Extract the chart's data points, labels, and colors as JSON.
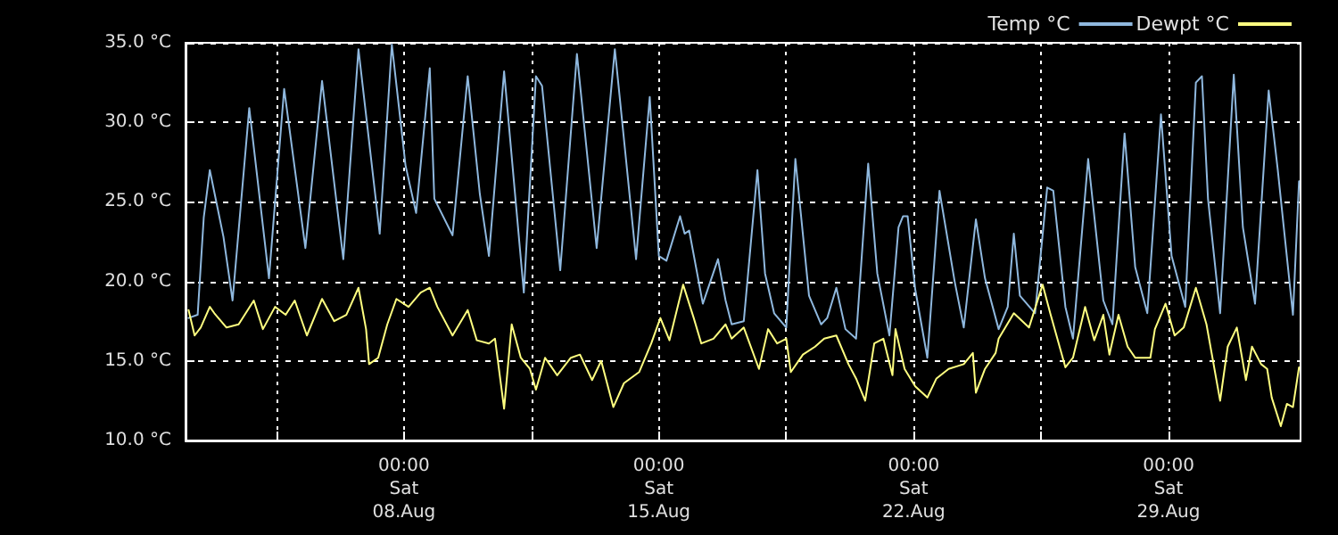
{
  "chart_data": {
    "type": "line",
    "xlim": [
      "--08-02T00:00",
      "--09-01T15:00"
    ],
    "xticks": [
      {
        "value": "--08-04T12:00",
        "label": null
      },
      {
        "value": "--08-08T00:00",
        "label": "00:00\nSat\n08.Aug"
      },
      {
        "value": "--08-11T12:00",
        "label": null
      },
      {
        "value": "--08-15T00:00",
        "label": "00:00\nSat\n15.Aug"
      },
      {
        "value": "--08-18T12:00",
        "label": null
      },
      {
        "value": "--08-22T00:00",
        "label": "00:00\nSat\n22.Aug"
      },
      {
        "value": "--08-25T12:00",
        "label": null
      },
      {
        "value": "--08-29T00:00",
        "label": "00:00\nSat\n29.Aug"
      }
    ],
    "ylim": [
      10,
      35
    ],
    "yticks": [
      {
        "value": 10,
        "label": "10.0 °C"
      },
      {
        "value": 15,
        "label": "15.0 °C"
      },
      {
        "value": 20,
        "label": "20.0 °C"
      },
      {
        "value": 25,
        "label": "25.0 °C"
      },
      {
        "value": 30,
        "label": "30.0 °C"
      },
      {
        "value": 35,
        "label": "35.0 °C"
      }
    ],
    "grid": true,
    "legend": "top right",
    "marker": "none",
    "line_style": "solid",
    "series": [
      {
        "name": "Temp °C",
        "color": "#8fb8de",
        "x": [
          "--08-02T02:00",
          "--08-02T08:00",
          "--08-02T12:00",
          "--08-02T16:00",
          "--08-03T01:00",
          "--08-03T07:00",
          "--08-03T18:00",
          "--08-04T07:00",
          "--08-04T17:00",
          "--08-05T07:00",
          "--08-05T18:00",
          "--08-06T08:00",
          "--08-06T18:00",
          "--08-07T08:00",
          "--08-07T16:00",
          "--08-08T01:00",
          "--08-08T08:00",
          "--08-08T17:00",
          "--08-08T20:00",
          "--08-09T08:00",
          "--08-09T18:00",
          "--08-10T02:00",
          "--08-10T08:00",
          "--08-10T18:00",
          "--08-11T07:00",
          "--08-11T15:00",
          "--08-11T19:00",
          "--08-12T07:00",
          "--08-12T18:00",
          "--08-13T07:00",
          "--08-13T19:00",
          "--08-14T09:00",
          "--08-14T18:00",
          "--08-15T00:00",
          "--08-15T05:00",
          "--08-15T14:00",
          "--08-15T17:00",
          "--08-15T20:00",
          "--08-16T05:00",
          "--08-16T15:00",
          "--08-16T20:00",
          "--08-17T00:00",
          "--08-17T08:00",
          "--08-17T17:00",
          "--08-17T22:00",
          "--08-18T04:00",
          "--08-18T12:00",
          "--08-18T18:00",
          "--08-19T03:00",
          "--08-19T11:00",
          "--08-19T15:00",
          "--08-19T21:00",
          "--08-20T03:00",
          "--08-20T10:00",
          "--08-20T18:00",
          "--08-21T00:00",
          "--08-21T08:00",
          "--08-21T14:00",
          "--08-21T17:00",
          "--08-21T20:00",
          "--08-22T01:00",
          "--08-22T09:00",
          "--08-22T17:00",
          "--08-23T03:00",
          "--08-23T09:00",
          "--08-23T17:00",
          "--08-23T23:00",
          "--08-24T08:00",
          "--08-24T14:00",
          "--08-24T18:00",
          "--08-24T22:00",
          "--08-25T08:00",
          "--08-25T16:00",
          "--08-25T20:00",
          "--08-26T04:00",
          "--08-26T09:00",
          "--08-26T19:00",
          "--08-27T05:00",
          "--08-27T11:00",
          "--08-27T19:00",
          "--08-28T02:00",
          "--08-28T10:00",
          "--08-28T19:00",
          "--08-29T02:00",
          "--08-29T11:00",
          "--08-29T18:00",
          "--08-29T22:00",
          "--08-30T02:00",
          "--08-30T10:00",
          "--08-30T19:00",
          "--08-31T01:00",
          "--08-31T09:00",
          "--08-31T18:00",
          "--09-01T00:00",
          "--09-01T10:00",
          "--09-01T14:00"
        ],
        "values": [
          17.7,
          17.9,
          24,
          27.0,
          22.8,
          18.8,
          30.9,
          20.2,
          32.1,
          22.1,
          32.6,
          21.4,
          34.6,
          23.0,
          34.9,
          27.3,
          24.3,
          33.4,
          25.2,
          22.9,
          32.9,
          25.5,
          21.6,
          33.2,
          19.3,
          32.9,
          32.3,
          20.7,
          34.3,
          22.1,
          34.6,
          21.4,
          31.6,
          21.6,
          21.3,
          24.1,
          23.0,
          23.2,
          18.6,
          21.4,
          18.8,
          17.3,
          17.5,
          27.0,
          20.5,
          18.0,
          17.1,
          27.7,
          19.1,
          17.3,
          17.7,
          19.6,
          17.0,
          16.4,
          27.4,
          20.5,
          16.6,
          23.4,
          24.1,
          24.1,
          19.5,
          15.2,
          25.7,
          20.0,
          17.1,
          23.9,
          20.2,
          17.0,
          18.4,
          23.0,
          19.1,
          18.0,
          25.9,
          25.7,
          18.4,
          16.4,
          27.7,
          18.8,
          17.3,
          29.3,
          20.9,
          18.0,
          30.5,
          21.6,
          18.4,
          32.5,
          32.9,
          25.2,
          18.0,
          33.0,
          23.4,
          18.6,
          32.0,
          27.0,
          17.9,
          26.3
        ]
      },
      {
        "name": "Dewpt °C",
        "color": "#ffff80",
        "x": [
          "--08-02T02:00",
          "--08-02T06:00",
          "--08-02T10:00",
          "--08-02T16:00",
          "--08-02T19:00",
          "--08-03T03:00",
          "--08-03T11:00",
          "--08-03T21:00",
          "--08-04T03:00",
          "--08-04T11:00",
          "--08-04T18:00",
          "--08-05T00:00",
          "--08-05T08:00",
          "--08-05T18:00",
          "--08-06T02:00",
          "--08-06T10:00",
          "--08-06T18:00",
          "--08-06T23:00",
          "--08-07T01:00",
          "--08-07T07:00",
          "--08-07T13:00",
          "--08-07T19:00",
          "--08-08T03:00",
          "--08-08T11:00",
          "--08-08T17:00",
          "--08-08T22:00",
          "--08-09T08:00",
          "--08-09T18:00",
          "--08-10T00:00",
          "--08-10T08:00",
          "--08-10T12:00",
          "--08-10T18:00",
          "--08-10T23:00",
          "--08-11T05:00",
          "--08-11T11:00",
          "--08-11T15:00",
          "--08-11T21:00",
          "--08-12T05:00",
          "--08-12T14:00",
          "--08-12T20:00",
          "--08-13T04:00",
          "--08-13T10:00",
          "--08-13T18:00",
          "--08-14T01:00",
          "--08-14T11:00",
          "--08-14T19:00",
          "--08-15T01:00",
          "--08-15T07:00",
          "--08-15T16:00",
          "--08-15T23:00",
          "--08-16T04:00",
          "--08-16T12:00",
          "--08-16T20:00",
          "--08-17T00:00",
          "--08-17T08:00",
          "--08-17T18:00",
          "--08-18T00:00",
          "--08-18T06:00",
          "--08-18T12:00",
          "--08-18T15:00",
          "--08-18T23:00",
          "--08-19T07:00",
          "--08-19T13:00",
          "--08-19T21:00",
          "--08-20T05:00",
          "--08-20T10:00",
          "--08-20T16:00",
          "--08-20T22:00",
          "--08-21T04:00",
          "--08-21T10:00",
          "--08-21T12:00",
          "--08-21T18:00",
          "--08-22T01:00",
          "--08-22T09:00",
          "--08-22T15:00",
          "--08-22T23:00",
          "--08-23T09:00",
          "--08-23T15:00",
          "--08-23T17:00",
          "--08-23T23:00",
          "--08-24T06:00",
          "--08-24T08:00",
          "--08-24T18:00",
          "--08-25T04:00",
          "--08-25T13:00",
          "--08-25T18:00",
          "--08-26T04:00",
          "--08-26T09:00",
          "--08-26T17:00",
          "--08-26T23:00",
          "--08-27T05:00",
          "--08-27T09:00",
          "--08-27T15:00",
          "--08-27T21:00",
          "--08-28T02:00",
          "--08-28T12:00",
          "--08-28T15:00",
          "--08-28T22:00",
          "--08-29T04:00",
          "--08-29T10:00",
          "--08-29T18:00",
          "--08-30T01:00",
          "--08-30T10:00",
          "--08-30T15:00",
          "--08-30T21:00",
          "--08-31T03:00",
          "--08-31T07:00",
          "--08-31T13:00",
          "--08-31T17:00",
          "--08-31T20:00",
          "--09-01T02:00",
          "--09-01T06:00",
          "--09-01T10:00",
          "--09-01T14:00"
        ],
        "values": [
          18.2,
          16.6,
          17.1,
          18.4,
          18.0,
          17.1,
          17.3,
          18.8,
          17.0,
          18.4,
          17.9,
          18.8,
          16.6,
          18.9,
          17.5,
          17.9,
          19.6,
          17.0,
          14.8,
          15.2,
          17.3,
          18.9,
          18.4,
          19.3,
          19.6,
          18.4,
          16.6,
          18.2,
          16.3,
          16.1,
          16.4,
          12.0,
          17.3,
          15.2,
          14.5,
          13.2,
          15.2,
          14.1,
          15.2,
          15.4,
          13.8,
          15.0,
          12.1,
          13.6,
          14.3,
          16.1,
          17.7,
          16.3,
          19.8,
          17.7,
          16.1,
          16.4,
          17.3,
          16.4,
          17.1,
          14.5,
          17.0,
          16.1,
          16.4,
          14.3,
          15.4,
          15.9,
          16.4,
          16.6,
          14.8,
          13.9,
          12.5,
          16.1,
          16.4,
          14.1,
          17.0,
          14.5,
          13.4,
          12.7,
          13.9,
          14.5,
          14.8,
          15.5,
          13.0,
          14.5,
          15.5,
          16.4,
          18.0,
          17.1,
          19.8,
          18.0,
          14.6,
          15.2,
          18.4,
          16.3,
          17.9,
          15.4,
          17.9,
          15.9,
          15.2,
          15.2,
          17.0,
          18.6,
          16.6,
          17.1,
          19.6,
          17.3,
          12.5,
          15.9,
          17.1,
          13.8,
          15.9,
          14.8,
          14.5,
          12.7,
          10.9,
          12.3,
          12.1,
          14.6
        ]
      }
    ]
  }
}
